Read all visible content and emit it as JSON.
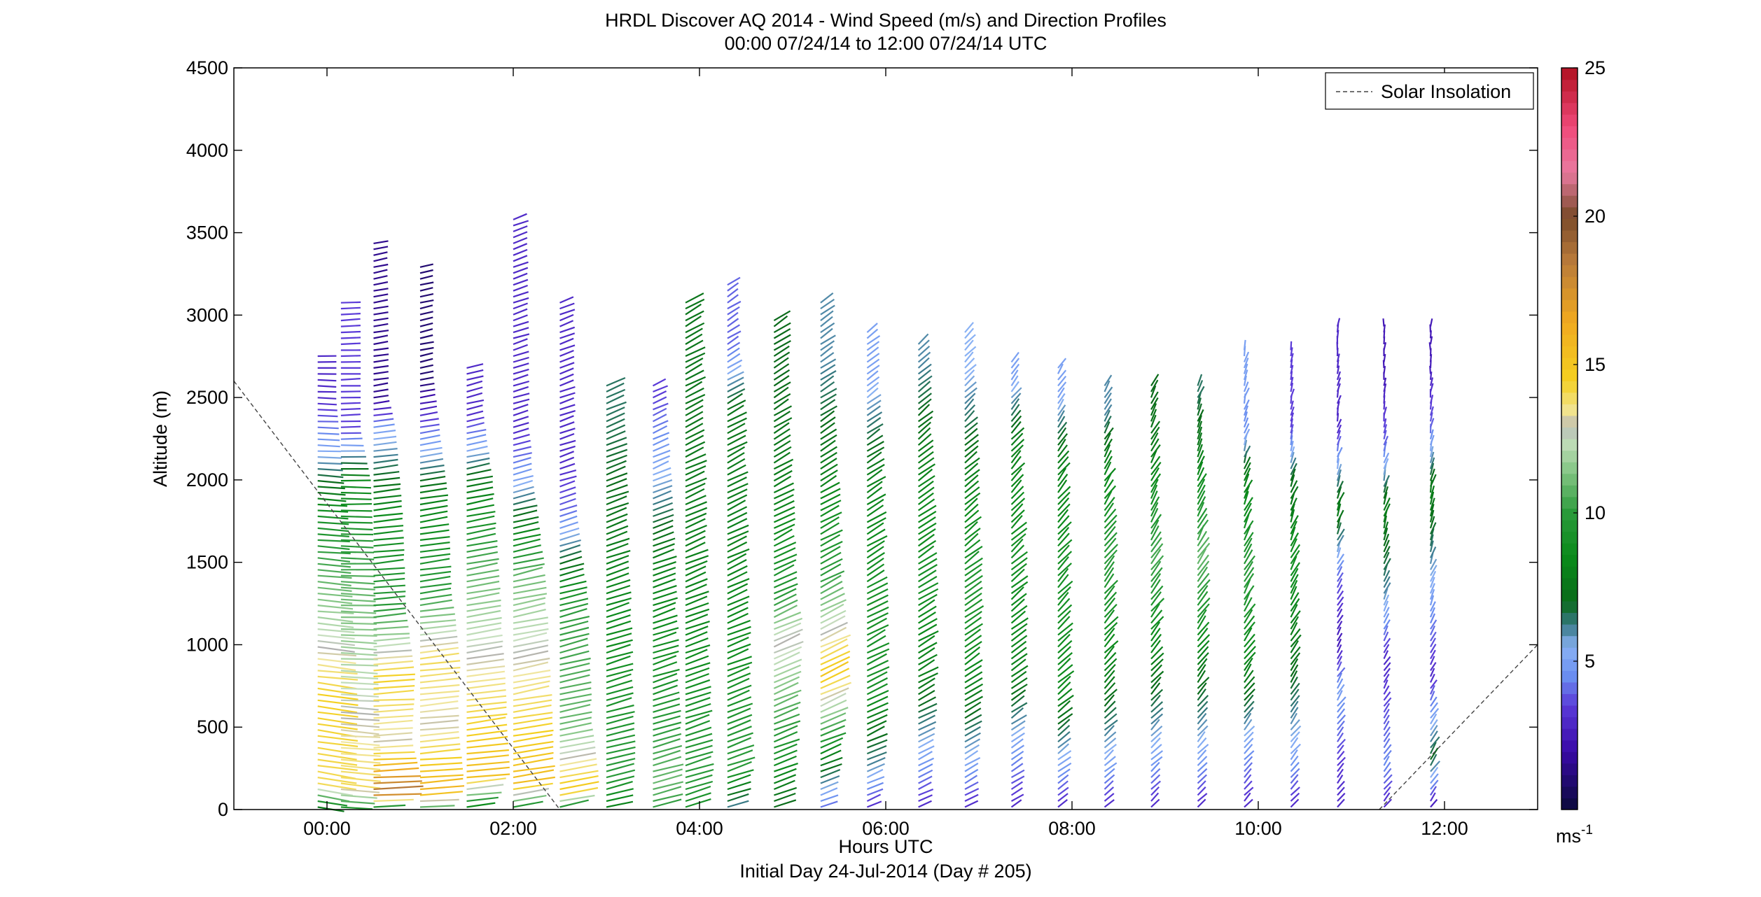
{
  "chart_data": {
    "type": "scatter",
    "subtype": "wind-barb-profile",
    "title": "HRDL Discover AQ 2014 - Wind Speed (m/s) and Direction Profiles",
    "subtitle": "00:00 07/24/14 to 12:00 07/24/14  UTC",
    "xlabel": "Hours UTC",
    "footer": "Initial Day 24-Jul-2014 (Day # 205)",
    "ylabel": "Altitude (m)",
    "xlim": [
      -1.0,
      13.0
    ],
    "ylim": [
      0,
      4500
    ],
    "x_ticks": [
      {
        "value": 0,
        "label": "00:00"
      },
      {
        "value": 2,
        "label": "02:00"
      },
      {
        "value": 4,
        "label": "04:00"
      },
      {
        "value": 6,
        "label": "06:00"
      },
      {
        "value": 8,
        "label": "08:00"
      },
      {
        "value": 10,
        "label": "10:00"
      },
      {
        "value": 12,
        "label": "12:00"
      }
    ],
    "y_ticks": [
      {
        "value": 0,
        "label": "0"
      },
      {
        "value": 500,
        "label": "500"
      },
      {
        "value": 1000,
        "label": "1000"
      },
      {
        "value": 1500,
        "label": "1500"
      },
      {
        "value": 2000,
        "label": "2000"
      },
      {
        "value": 2500,
        "label": "2500"
      },
      {
        "value": 3000,
        "label": "3000"
      },
      {
        "value": 3500,
        "label": "3500"
      },
      {
        "value": 4000,
        "label": "4000"
      },
      {
        "value": 4500,
        "label": "4500"
      }
    ],
    "colorbar": {
      "min": 0,
      "max": 25,
      "unit_base": "ms",
      "unit_exp": "-1",
      "ticks": [
        {
          "value": 5,
          "label": "5"
        },
        {
          "value": 10,
          "label": "10"
        },
        {
          "value": 15,
          "label": "15"
        },
        {
          "value": 20,
          "label": "20"
        },
        {
          "value": 25,
          "label": "25"
        }
      ],
      "stops": [
        {
          "v": 0,
          "c": "#0a0a3a"
        },
        {
          "v": 2,
          "c": "#3a0aa8"
        },
        {
          "v": 3.5,
          "c": "#5a3ad8"
        },
        {
          "v": 4.5,
          "c": "#6a8ef0"
        },
        {
          "v": 5.5,
          "c": "#8ab2f4"
        },
        {
          "v": 6.2,
          "c": "#3a7a8a"
        },
        {
          "v": 7,
          "c": "#0a6a1a"
        },
        {
          "v": 8.5,
          "c": "#0a8a1a"
        },
        {
          "v": 10,
          "c": "#2a9a3a"
        },
        {
          "v": 11.5,
          "c": "#8ac88a"
        },
        {
          "v": 12.5,
          "c": "#c8e0c0"
        },
        {
          "v": 12.9,
          "c": "#b0b0b0"
        },
        {
          "v": 13.3,
          "c": "#f0e6a0"
        },
        {
          "v": 14.5,
          "c": "#f4d020"
        },
        {
          "v": 16.5,
          "c": "#f0a820"
        },
        {
          "v": 18.5,
          "c": "#b87a3a"
        },
        {
          "v": 20,
          "c": "#7a4a2a"
        },
        {
          "v": 21.5,
          "c": "#e87aa0"
        },
        {
          "v": 23,
          "c": "#f04a7a"
        },
        {
          "v": 25,
          "c": "#b01020"
        }
      ]
    },
    "legend": {
      "label": "Solar Insolation",
      "placement": "top-right",
      "style": "dashed"
    },
    "solar_insolation": {
      "segments": [
        [
          [
            -1.0,
            2600
          ],
          [
            2.5,
            0
          ]
        ],
        [
          [
            11.3,
            0
          ],
          [
            13.0,
            1000
          ]
        ]
      ]
    },
    "profiles": [
      {
        "t": -0.1,
        "top": 2780,
        "dir": -8,
        "layers": [
          [
            0,
            7
          ],
          [
            160,
            14
          ],
          [
            700,
            14.5
          ],
          [
            1150,
            12
          ],
          [
            1800,
            9
          ],
          [
            2200,
            5
          ],
          [
            2500,
            3
          ]
        ]
      },
      {
        "t": 0.15,
        "top": 3100,
        "dir": 0,
        "layers": [
          [
            0,
            9
          ],
          [
            150,
            14
          ],
          [
            1300,
            11
          ],
          [
            2000,
            8.5
          ],
          [
            2300,
            3.5
          ]
        ]
      },
      {
        "t": 0.5,
        "top": 3450,
        "dir": 15,
        "layers": [
          [
            0,
            8
          ],
          [
            100,
            19
          ],
          [
            400,
            13
          ],
          [
            800,
            14.5
          ],
          [
            1200,
            10
          ],
          [
            1800,
            8.5
          ],
          [
            2300,
            5
          ],
          [
            2500,
            1.5
          ]
        ]
      },
      {
        "t": 1.0,
        "top": 3300,
        "dir": 20,
        "layers": [
          [
            0,
            10
          ],
          [
            100,
            16
          ],
          [
            500,
            13
          ],
          [
            900,
            14
          ],
          [
            1300,
            10
          ],
          [
            1900,
            8
          ],
          [
            2300,
            4
          ],
          [
            2600,
            1
          ]
        ]
      },
      {
        "t": 1.5,
        "top": 2700,
        "dir": 25,
        "layers": [
          [
            0,
            8
          ],
          [
            200,
            15.5
          ],
          [
            900,
            13
          ],
          [
            1500,
            10.5
          ],
          [
            2000,
            7.5
          ],
          [
            2200,
            5
          ],
          [
            2400,
            3
          ]
        ]
      },
      {
        "t": 2.0,
        "top": 3600,
        "dir": 30,
        "layers": [
          [
            0,
            9
          ],
          [
            150,
            15.5
          ],
          [
            900,
            13
          ],
          [
            1400,
            11
          ],
          [
            2000,
            5
          ],
          [
            2300,
            3
          ]
        ]
      },
      {
        "t": 2.5,
        "top": 3100,
        "dir": 35,
        "layers": [
          [
            0,
            9
          ],
          [
            100,
            15
          ],
          [
            500,
            11
          ],
          [
            1200,
            10
          ],
          [
            1800,
            4
          ],
          [
            2100,
            3
          ]
        ]
      },
      {
        "t": 3.0,
        "top": 2600,
        "dir": 40,
        "layers": [
          [
            0,
            8
          ],
          [
            200,
            10
          ],
          [
            800,
            9
          ],
          [
            1500,
            8
          ],
          [
            2000,
            7
          ],
          [
            2400,
            6.5
          ]
        ]
      },
      {
        "t": 3.5,
        "top": 2600,
        "dir": 42,
        "layers": [
          [
            0,
            10
          ],
          [
            150,
            11
          ],
          [
            800,
            9
          ],
          [
            1500,
            8
          ],
          [
            2000,
            5.5
          ],
          [
            2500,
            3.5
          ]
        ]
      },
      {
        "t": 3.85,
        "top": 3100,
        "dir": 45,
        "layers": [
          [
            0,
            9
          ],
          [
            200,
            10
          ],
          [
            900,
            8.5
          ],
          [
            1600,
            8
          ],
          [
            2300,
            7.5
          ]
        ]
      },
      {
        "t": 4.3,
        "top": 3200,
        "dir": 48,
        "layers": [
          [
            0,
            6
          ],
          [
            250,
            10
          ],
          [
            1000,
            8.5
          ],
          [
            1700,
            8
          ],
          [
            2400,
            7.5
          ],
          [
            2800,
            4
          ]
        ]
      },
      {
        "t": 4.8,
        "top": 3000,
        "dir": 50,
        "layers": [
          [
            0,
            7
          ],
          [
            300,
            9
          ],
          [
            1000,
            13
          ],
          [
            1300,
            9.5
          ],
          [
            1900,
            8
          ],
          [
            2600,
            7
          ]
        ]
      },
      {
        "t": 5.3,
        "top": 3100,
        "dir": 52,
        "layers": [
          [
            0,
            4
          ],
          [
            300,
            8
          ],
          [
            800,
            15
          ],
          [
            1400,
            10
          ],
          [
            2000,
            8
          ],
          [
            2700,
            6
          ]
        ]
      },
      {
        "t": 5.8,
        "top": 2900,
        "dir": 55,
        "layers": [
          [
            0,
            3
          ],
          [
            250,
            6
          ],
          [
            700,
            9
          ],
          [
            1300,
            9
          ],
          [
            2000,
            8
          ],
          [
            2600,
            5
          ]
        ]
      },
      {
        "t": 6.35,
        "top": 2850,
        "dir": 58,
        "layers": [
          [
            0,
            3
          ],
          [
            300,
            5
          ],
          [
            800,
            8
          ],
          [
            1400,
            9
          ],
          [
            2100,
            8
          ],
          [
            2700,
            6
          ]
        ]
      },
      {
        "t": 6.85,
        "top": 2900,
        "dir": 62,
        "layers": [
          [
            0,
            3
          ],
          [
            250,
            5
          ],
          [
            700,
            8
          ],
          [
            1300,
            9.5
          ],
          [
            2000,
            8
          ],
          [
            2600,
            5.5
          ]
        ]
      },
      {
        "t": 7.35,
        "top": 2750,
        "dir": 66,
        "layers": [
          [
            0,
            3
          ],
          [
            300,
            4.5
          ],
          [
            800,
            8
          ],
          [
            1500,
            9
          ],
          [
            2200,
            8
          ],
          [
            2600,
            5
          ]
        ]
      },
      {
        "t": 7.85,
        "top": 2700,
        "dir": 70,
        "layers": [
          [
            0,
            3
          ],
          [
            250,
            5
          ],
          [
            700,
            8.5
          ],
          [
            1400,
            9
          ],
          [
            2100,
            8
          ],
          [
            2500,
            5
          ]
        ]
      },
      {
        "t": 8.35,
        "top": 2600,
        "dir": 73,
        "layers": [
          [
            0,
            3
          ],
          [
            250,
            5
          ],
          [
            800,
            8
          ],
          [
            1500,
            10
          ],
          [
            2100,
            8
          ],
          [
            2400,
            6
          ]
        ]
      },
      {
        "t": 8.85,
        "top": 2600,
        "dir": 75,
        "layers": [
          [
            0,
            3
          ],
          [
            300,
            5
          ],
          [
            900,
            8
          ],
          [
            1500,
            10.5
          ],
          [
            2100,
            8
          ],
          [
            2500,
            7
          ]
        ]
      },
      {
        "t": 9.35,
        "top": 2600,
        "dir": 77,
        "layers": [
          [
            0,
            3
          ],
          [
            300,
            5
          ],
          [
            800,
            7.5
          ],
          [
            1500,
            11
          ],
          [
            2100,
            8
          ],
          [
            2500,
            6.5
          ]
        ]
      },
      {
        "t": 9.85,
        "top": 2800,
        "dir": 79,
        "layers": [
          [
            0,
            3
          ],
          [
            300,
            4.5
          ],
          [
            800,
            8
          ],
          [
            1400,
            10
          ],
          [
            2000,
            8
          ],
          [
            2300,
            4.5
          ],
          [
            2600,
            5
          ]
        ]
      },
      {
        "t": 10.35,
        "top": 2800,
        "dir": 80,
        "layers": [
          [
            0,
            3
          ],
          [
            300,
            5
          ],
          [
            900,
            7.5
          ],
          [
            1500,
            9
          ],
          [
            2000,
            7
          ],
          [
            2300,
            3.5
          ]
        ]
      },
      {
        "t": 10.85,
        "top": 2950,
        "dir": 81,
        "layers": [
          [
            0,
            3
          ],
          [
            300,
            3.5
          ],
          [
            700,
            5
          ],
          [
            1000,
            2.5
          ],
          [
            1400,
            4
          ],
          [
            1800,
            8
          ],
          [
            2300,
            3
          ]
        ]
      },
      {
        "t": 11.35,
        "top": 2950,
        "dir": 82,
        "layers": [
          [
            0,
            3
          ],
          [
            250,
            4.5
          ],
          [
            900,
            3
          ],
          [
            1300,
            6
          ],
          [
            1800,
            8
          ],
          [
            2200,
            4
          ],
          [
            2600,
            2.5
          ]
        ]
      },
      {
        "t": 11.85,
        "top": 2950,
        "dir": 83,
        "layers": [
          [
            0,
            2.5
          ],
          [
            300,
            7
          ],
          [
            800,
            3
          ],
          [
            1400,
            5.5
          ],
          [
            1900,
            8
          ],
          [
            2300,
            4
          ],
          [
            2700,
            2.5
          ]
        ]
      }
    ]
  }
}
